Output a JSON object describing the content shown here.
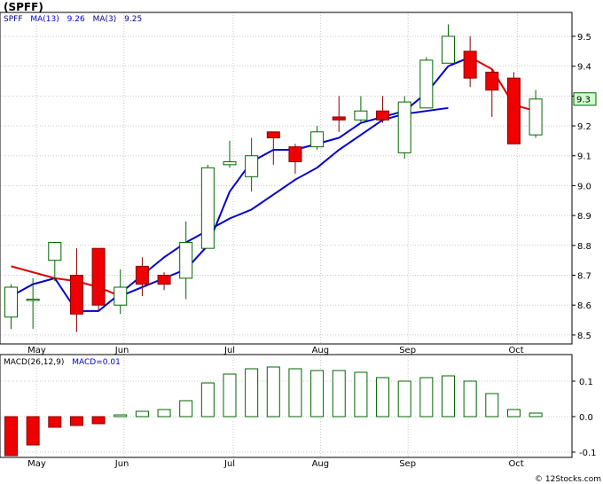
{
  "chart_data": [
    {
      "type": "candlestick",
      "title": "(SPFF)",
      "legend": [
        {
          "label": "SPFF",
          "color": "#000080"
        },
        {
          "label": "MA(13)",
          "color": "#0000cc"
        },
        {
          "label": "9.26",
          "color": "#0000cc"
        },
        {
          "label": "MA(3)",
          "color": "#000080"
        },
        {
          "label": "9.25",
          "color": "#000080"
        }
      ],
      "last_price_label": "9.3",
      "y_ticks": [
        8.5,
        8.6,
        8.7,
        8.8,
        8.9,
        9.0,
        9.1,
        9.2,
        9.3,
        9.4,
        9.5
      ],
      "ylim": [
        8.47,
        9.58
      ],
      "x_ticks": [
        {
          "label": "May",
          "index": 1
        },
        {
          "label": "Jun",
          "index": 5
        },
        {
          "label": "Jul",
          "index": 10
        },
        {
          "label": "Aug",
          "index": 14
        },
        {
          "label": "Sep",
          "index": 18
        },
        {
          "label": "Oct",
          "index": 23
        }
      ],
      "candles": [
        {
          "open": 8.56,
          "close": 8.66,
          "high": 8.67,
          "low": 8.52
        },
        {
          "open": 8.62,
          "close": 8.62,
          "high": 8.69,
          "low": 8.52
        },
        {
          "open": 8.75,
          "close": 8.81,
          "high": 8.81,
          "low": 8.68
        },
        {
          "open": 8.7,
          "close": 8.57,
          "high": 8.79,
          "low": 8.51
        },
        {
          "open": 8.79,
          "close": 8.6,
          "high": 8.79,
          "low": 8.58
        },
        {
          "open": 8.6,
          "close": 8.66,
          "high": 8.72,
          "low": 8.57
        },
        {
          "open": 8.73,
          "close": 8.67,
          "high": 8.76,
          "low": 8.63
        },
        {
          "open": 8.7,
          "close": 8.67,
          "high": 8.71,
          "low": 8.65
        },
        {
          "open": 8.69,
          "close": 8.81,
          "high": 8.88,
          "low": 8.62
        },
        {
          "open": 8.79,
          "close": 9.06,
          "high": 9.07,
          "low": 8.79
        },
        {
          "open": 9.07,
          "close": 9.08,
          "high": 9.15,
          "low": 9.06
        },
        {
          "open": 9.03,
          "close": 9.1,
          "high": 9.16,
          "low": 8.98
        },
        {
          "open": 9.18,
          "close": 9.16,
          "high": 9.18,
          "low": 9.07
        },
        {
          "open": 9.13,
          "close": 9.08,
          "high": 9.14,
          "low": 9.04
        },
        {
          "open": 9.13,
          "close": 9.18,
          "high": 9.2,
          "low": 9.12
        },
        {
          "open": 9.23,
          "close": 9.22,
          "high": 9.3,
          "low": 9.18
        },
        {
          "open": 9.22,
          "close": 9.25,
          "high": 9.3,
          "low": 9.21
        },
        {
          "open": 9.25,
          "close": 9.22,
          "high": 9.3,
          "low": 9.21
        },
        {
          "open": 9.11,
          "close": 9.28,
          "high": 9.3,
          "low": 9.09
        },
        {
          "open": 9.26,
          "close": 9.42,
          "high": 9.43,
          "low": 9.26
        },
        {
          "open": 9.41,
          "close": 9.5,
          "high": 9.54,
          "low": 9.41
        },
        {
          "open": 9.45,
          "close": 9.36,
          "high": 9.5,
          "low": 9.33
        },
        {
          "open": 9.38,
          "close": 9.32,
          "high": 9.39,
          "low": 9.23
        },
        {
          "open": 9.36,
          "close": 9.14,
          "high": 9.38,
          "low": 9.14
        },
        {
          "open": 9.17,
          "close": 9.29,
          "high": 9.32,
          "low": 9.16
        }
      ],
      "ma13": {
        "name": "MA(13)",
        "color": "#0000cc",
        "start_index": 4,
        "values": [
          8.63,
          8.67,
          8.69,
          8.58,
          8.58,
          8.64,
          8.7,
          8.76,
          8.81,
          8.85,
          8.89,
          8.92,
          8.97,
          9.02,
          9.06,
          9.12,
          9.17,
          9.22,
          9.24,
          9.25,
          9.26
        ]
      },
      "ma3": {
        "name": "MA(3)",
        "color": "#0000cc",
        "color_falling": "#dd0000",
        "values": [
          8.73,
          8.71,
          8.69,
          8.68,
          8.66,
          8.63,
          8.66,
          8.69,
          8.72,
          8.8,
          8.98,
          9.08,
          9.12,
          9.12,
          9.14,
          9.16,
          9.21,
          9.23,
          9.25,
          9.31,
          9.4,
          9.43,
          9.39,
          9.27,
          9.25
        ]
      }
    },
    {
      "type": "histogram",
      "label": "MACD(26,12,9)",
      "value_label": "MACD=0.01",
      "y_ticks": [
        -0.1,
        0.0,
        0.1
      ],
      "ylim": [
        -0.115,
        0.175
      ],
      "values": [
        -0.11,
        -0.08,
        -0.03,
        -0.025,
        -0.02,
        0.005,
        0.015,
        0.02,
        0.045,
        0.095,
        0.12,
        0.135,
        0.14,
        0.135,
        0.13,
        0.13,
        0.125,
        0.11,
        0.1,
        0.11,
        0.115,
        0.1,
        0.065,
        0.02,
        0.01
      ],
      "positive_color": "#006600",
      "negative_color": "#ee0000"
    }
  ],
  "footer": {
    "copyright": "© 12Stocks.com"
  },
  "colors": {
    "up_fill": "#ffffff",
    "up_border": "#006600",
    "down_fill": "#ee0000",
    "down_border": "#880000",
    "grid": "#c8c8c8",
    "last_box": "#ccffcc"
  }
}
